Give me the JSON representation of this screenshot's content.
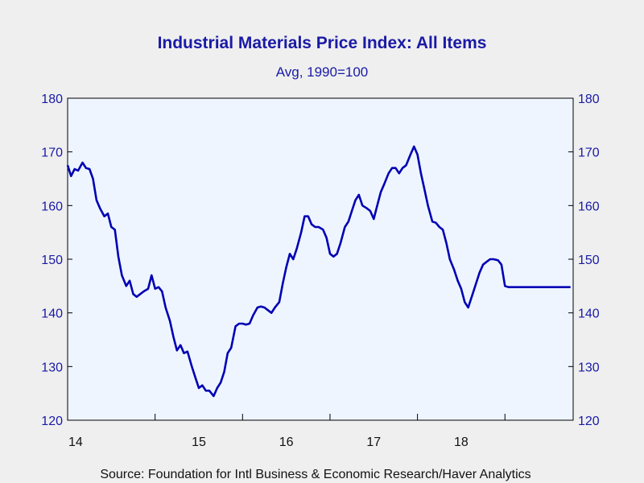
{
  "chart_data": {
    "type": "line",
    "title": "Industrial Materials Price Index: All Items",
    "subtitle": "Avg, 1990=100",
    "source": "Source:  Foundation for Intl Business & Economic Research/Haver Analytics",
    "x_ticks": [
      "14",
      "15",
      "16",
      "17",
      "18"
    ],
    "y_ticks": [
      "120",
      "130",
      "140",
      "150",
      "160",
      "170",
      "180"
    ],
    "ylim": [
      120,
      180
    ],
    "xlim": [
      2014.0,
      2019.78
    ],
    "axis_labels_both_sides": true,
    "grid": false,
    "colors": {
      "line": "#0000b4",
      "text": "#1a1aa6",
      "plot_bg": "#eef5ff",
      "page_bg": "#efefef"
    },
    "series": [
      {
        "x": [
          2014.0,
          2014.04,
          2014.08,
          2014.12,
          2014.17,
          2014.21,
          2014.25,
          2014.29,
          2014.33,
          2014.37,
          2014.42,
          2014.46,
          2014.5,
          2014.54,
          2014.58,
          2014.62,
          2014.67,
          2014.71,
          2014.75,
          2014.79,
          2014.83,
          2014.87,
          2014.92,
          2014.96,
          2015.0,
          2015.04,
          2015.08,
          2015.12,
          2015.17,
          2015.21,
          2015.25,
          2015.29,
          2015.33,
          2015.37,
          2015.42,
          2015.46,
          2015.5,
          2015.54,
          2015.58,
          2015.62,
          2015.67,
          2015.71,
          2015.75,
          2015.79,
          2015.83,
          2015.87,
          2015.92,
          2015.96,
          2016.0,
          2016.04,
          2016.08,
          2016.12,
          2016.17,
          2016.21,
          2016.25,
          2016.29,
          2016.33,
          2016.37,
          2016.42,
          2016.46,
          2016.5,
          2016.54,
          2016.58,
          2016.62,
          2016.67,
          2016.71,
          2016.75,
          2016.79,
          2016.83,
          2016.87,
          2016.92,
          2016.96,
          2017.0,
          2017.04,
          2017.08,
          2017.12,
          2017.17,
          2017.21,
          2017.25,
          2017.29,
          2017.33,
          2017.37,
          2017.42,
          2017.46,
          2017.5,
          2017.54,
          2017.58,
          2017.62,
          2017.67,
          2017.71,
          2017.75,
          2017.79,
          2017.83,
          2017.87,
          2017.92,
          2017.96,
          2018.0,
          2018.04,
          2018.08,
          2018.12,
          2018.17,
          2018.21,
          2018.25,
          2018.29,
          2018.33,
          2018.37,
          2018.42,
          2018.46,
          2018.5,
          2018.54,
          2018.58,
          2018.62,
          2018.67,
          2018.71,
          2018.75,
          2018.79,
          2018.83,
          2018.87,
          2018.92,
          2018.96,
          2019.0,
          2019.04,
          2019.08,
          2019.12,
          2019.17,
          2019.21,
          2019.25,
          2019.29,
          2019.33,
          2019.37,
          2019.42,
          2019.46,
          2019.5,
          2019.54,
          2019.58,
          2019.62,
          2019.67,
          2019.71,
          2019.75
        ],
        "y": [
          167.5,
          165.5,
          166.8,
          166.5,
          168.0,
          167.0,
          166.8,
          165.0,
          161.0,
          159.5,
          158.0,
          158.5,
          156.0,
          155.5,
          150.5,
          147.0,
          145.0,
          146.0,
          143.5,
          143.0,
          143.5,
          144.0,
          144.5,
          147.0,
          144.5,
          144.8,
          144.0,
          141.0,
          138.5,
          135.5,
          133.0,
          134.0,
          132.5,
          132.8,
          130.0,
          128.0,
          126.0,
          126.5,
          125.5,
          125.5,
          124.5,
          126.0,
          127.0,
          129.0,
          132.5,
          133.5,
          137.5,
          138.0,
          138.0,
          137.8,
          138.0,
          139.5,
          141.0,
          141.2,
          141.0,
          140.5,
          140.0,
          141.0,
          142.0,
          145.5,
          148.5,
          151.0,
          150.0,
          152.0,
          155.0,
          158.0,
          158.0,
          156.5,
          156.0,
          156.0,
          155.5,
          154.0,
          151.0,
          150.5,
          151.0,
          153.0,
          156.0,
          157.0,
          159.0,
          161.0,
          162.0,
          160.0,
          159.5,
          159.0,
          157.5,
          160.0,
          162.5,
          164.0,
          166.0,
          167.0,
          167.0,
          166.0,
          167.0,
          167.5,
          169.5,
          171.0,
          169.5,
          166.0,
          163.0,
          160.0,
          157.0,
          156.8,
          156.0,
          155.5,
          153.0,
          150.0,
          148.0,
          146.0,
          144.5,
          142.0,
          141.0,
          143.0,
          145.5,
          147.5,
          149.0,
          149.5,
          150.0,
          150.0,
          149.8,
          149.0,
          145.0,
          144.8,
          144.8,
          144.8,
          144.8,
          144.8,
          144.8,
          144.8,
          144.8,
          144.8,
          144.8,
          144.8,
          144.8,
          144.8,
          144.8,
          144.8,
          144.8,
          144.8,
          144.8
        ]
      }
    ]
  }
}
